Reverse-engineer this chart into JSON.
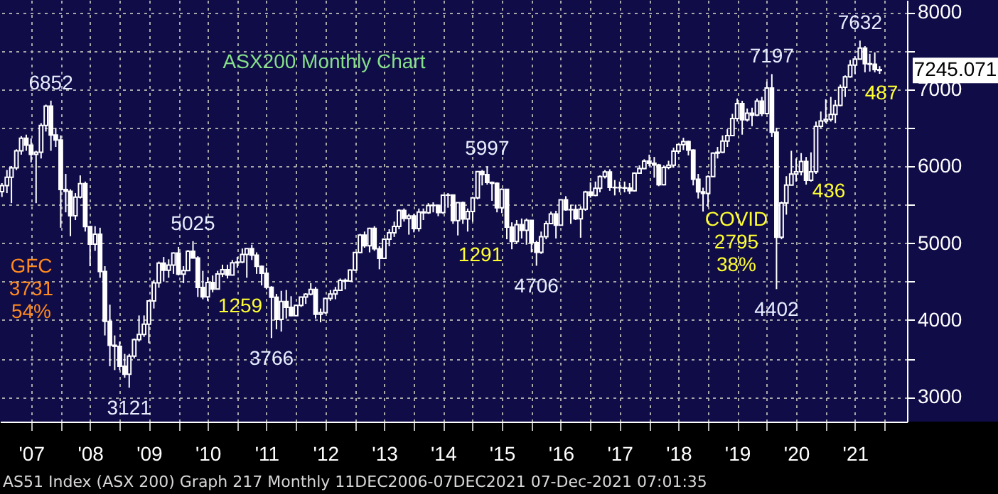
{
  "chart_data": {
    "type": "candlestick",
    "title": "ASX200 Monthly Chart",
    "color": "#ffffff",
    "grid": true,
    "xlim": [
      "2006-12-20",
      "2022-05-20"
    ],
    "xticks": [
      {
        "value": "2007-07",
        "label": "'07"
      },
      {
        "value": "2008-07",
        "label": "'08"
      },
      {
        "value": "2009-07",
        "label": "'09"
      },
      {
        "value": "2010-07",
        "label": "'10"
      },
      {
        "value": "2011-07",
        "label": "'11"
      },
      {
        "value": "2012-07",
        "label": "'12"
      },
      {
        "value": "2013-07",
        "label": "'13"
      },
      {
        "value": "2014-07",
        "label": "'14"
      },
      {
        "value": "2015-07",
        "label": "'15"
      },
      {
        "value": "2016-07",
        "label": "'16"
      },
      {
        "value": "2017-07",
        "label": "'17"
      },
      {
        "value": "2018-07",
        "label": "'18"
      },
      {
        "value": "2019-07",
        "label": "'19"
      },
      {
        "value": "2020-07",
        "label": "'20"
      },
      {
        "value": "2021-07",
        "label": "'21"
      },
      {
        "value": "2008-01",
        "label": null
      },
      {
        "value": "2009-01",
        "label": null
      },
      {
        "value": "2010-01",
        "label": null
      },
      {
        "value": "2011-01",
        "label": null
      },
      {
        "value": "2012-01",
        "label": null
      },
      {
        "value": "2013-01",
        "label": null
      },
      {
        "value": "2014-01",
        "label": null
      },
      {
        "value": "2015-01",
        "label": null
      },
      {
        "value": "2016-01",
        "label": null
      },
      {
        "value": "2017-01",
        "label": null
      },
      {
        "value": "2018-01",
        "label": null
      },
      {
        "value": "2019-01",
        "label": null
      },
      {
        "value": "2020-01",
        "label": null
      },
      {
        "value": "2021-01",
        "label": null
      },
      {
        "value": "2022-01",
        "label": null
      }
    ],
    "ylim": [
      2680,
      8160
    ],
    "yticks": [
      3000,
      4000,
      5000,
      6000,
      7000,
      8000,
      {
        "value": 3500,
        "label": null
      },
      {
        "value": 4500,
        "label": null
      },
      {
        "value": 5500,
        "label": null
      },
      {
        "value": 6500,
        "label": null
      },
      {
        "value": 7500,
        "label": null
      }
    ],
    "annotations": [
      {
        "text": "6852",
        "x": "2007-11",
        "y": 6852
      },
      {
        "text": "3121",
        "x": "2009-03",
        "y": 3121
      },
      {
        "text": "5025",
        "x": "2010-04",
        "y": 5025
      },
      {
        "text": "3766",
        "x": "2011-08",
        "y": 3766
      },
      {
        "text": "5997",
        "x": "2015-04",
        "y": 5997
      },
      {
        "text": "4706",
        "x": "2016-02",
        "y": 4706
      },
      {
        "text": "7197",
        "x": "2020-02",
        "y": 7197
      },
      {
        "text": "4402",
        "x": "2020-03",
        "y": 4402
      },
      {
        "text": "7632",
        "x": "2021-08",
        "y": 7632
      },
      {
        "text": "7245.071",
        "x": "2021-12",
        "y": 7245.071
      },
      "GFC\n3731\n54%",
      "1259",
      "1291",
      "COVID\n2795\n38%",
      "436",
      "487",
      "AS51 Index (ASX 200) Graph 217  Monthly 11DEC2006-07DEC2021 07-Dec-2021 07:01:35"
    ],
    "x": [
      "2007-01",
      "2007-02",
      "2007-03",
      "2007-04",
      "2007-05",
      "2007-06",
      "2007-07",
      "2007-08",
      "2007-09",
      "2007-10",
      "2007-11",
      "2007-12",
      "2008-01",
      "2008-02",
      "2008-03",
      "2008-04",
      "2008-05",
      "2008-06",
      "2008-07",
      "2008-08",
      "2008-09",
      "2008-10",
      "2008-11",
      "2008-12",
      "2009-01",
      "2009-02",
      "2009-03",
      "2009-04",
      "2009-05",
      "2009-06",
      "2009-07",
      "2009-08",
      "2009-09",
      "2009-10",
      "2009-11",
      "2009-12",
      "2010-01",
      "2010-02",
      "2010-03",
      "2010-04",
      "2010-05",
      "2010-06",
      "2010-07",
      "2010-08",
      "2010-09",
      "2010-10",
      "2010-11",
      "2010-12",
      "2011-01",
      "2011-02",
      "2011-03",
      "2011-04",
      "2011-05",
      "2011-06",
      "2011-07",
      "2011-08",
      "2011-09",
      "2011-10",
      "2011-11",
      "2011-12",
      "2012-01",
      "2012-02",
      "2012-03",
      "2012-04",
      "2012-05",
      "2012-06",
      "2012-07",
      "2012-08",
      "2012-09",
      "2012-10",
      "2012-11",
      "2012-12",
      "2013-01",
      "2013-02",
      "2013-03",
      "2013-04",
      "2013-05",
      "2013-06",
      "2013-07",
      "2013-08",
      "2013-09",
      "2013-10",
      "2013-11",
      "2013-12",
      "2014-01",
      "2014-02",
      "2014-03",
      "2014-04",
      "2014-05",
      "2014-06",
      "2014-07",
      "2014-08",
      "2014-09",
      "2014-10",
      "2014-11",
      "2014-12",
      "2015-01",
      "2015-02",
      "2015-03",
      "2015-04",
      "2015-05",
      "2015-06",
      "2015-07",
      "2015-08",
      "2015-09",
      "2015-10",
      "2015-11",
      "2015-12",
      "2016-01",
      "2016-02",
      "2016-03",
      "2016-04",
      "2016-05",
      "2016-06",
      "2016-07",
      "2016-08",
      "2016-09",
      "2016-10",
      "2016-11",
      "2016-12",
      "2017-01",
      "2017-02",
      "2017-03",
      "2017-04",
      "2017-05",
      "2017-06",
      "2017-07",
      "2017-08",
      "2017-09",
      "2017-10",
      "2017-11",
      "2017-12",
      "2018-01",
      "2018-02",
      "2018-03",
      "2018-04",
      "2018-05",
      "2018-06",
      "2018-07",
      "2018-08",
      "2018-09",
      "2018-10",
      "2018-11",
      "2018-12",
      "2019-01",
      "2019-02",
      "2019-03",
      "2019-04",
      "2019-05",
      "2019-06",
      "2019-07",
      "2019-08",
      "2019-09",
      "2019-10",
      "2019-11",
      "2019-12",
      "2020-01",
      "2020-02",
      "2020-03",
      "2020-04",
      "2020-05",
      "2020-06",
      "2020-07",
      "2020-08",
      "2020-09",
      "2020-10",
      "2020-11",
      "2020-12",
      "2021-01",
      "2021-02",
      "2021-03",
      "2021-04",
      "2021-05",
      "2021-06",
      "2021-07",
      "2021-08",
      "2021-09",
      "2021-10",
      "2021-11",
      "2021-12"
    ],
    "ohlc": [
      [
        5669,
        5780,
        5600,
        5748
      ],
      [
        5748,
        5950,
        5650,
        5856
      ],
      [
        5856,
        6000,
        5520,
        5978
      ],
      [
        5978,
        6220,
        5950,
        6200
      ],
      [
        6200,
        6390,
        6150,
        6363
      ],
      [
        6363,
        6410,
        6200,
        6274
      ],
      [
        6274,
        6360,
        6050,
        6153
      ],
      [
        6153,
        6200,
        5520,
        6180
      ],
      [
        6180,
        6560,
        6100,
        6529
      ],
      [
        6529,
        6800,
        6450,
        6780
      ],
      [
        6780,
        6852,
        6200,
        6405
      ],
      [
        6405,
        6500,
        6250,
        6340
      ],
      [
        6340,
        6400,
        5200,
        5697
      ],
      [
        5697,
        5900,
        5400,
        5673
      ],
      [
        5673,
        5700,
        5090,
        5355
      ],
      [
        5355,
        5650,
        5300,
        5598
      ],
      [
        5598,
        5880,
        5580,
        5773
      ],
      [
        5773,
        5800,
        5150,
        5215
      ],
      [
        5215,
        5220,
        4700,
        4986
      ],
      [
        4986,
        5220,
        4900,
        5116
      ],
      [
        5116,
        5200,
        4550,
        4631
      ],
      [
        4631,
        4700,
        3800,
        3983
      ],
      [
        3983,
        4200,
        3400,
        3672
      ],
      [
        3672,
        3800,
        3350,
        3659
      ],
      [
        3659,
        3720,
        3350,
        3400
      ],
      [
        3400,
        3560,
        3250,
        3296
      ],
      [
        3296,
        3560,
        3121,
        3532
      ],
      [
        3532,
        3760,
        3500,
        3745
      ],
      [
        3745,
        4060,
        3720,
        3813
      ],
      [
        3813,
        4060,
        3780,
        3947
      ],
      [
        3947,
        4260,
        3700,
        4249
      ],
      [
        4249,
        4520,
        4150,
        4484
      ],
      [
        4484,
        4760,
        4420,
        4739
      ],
      [
        4739,
        4820,
        4500,
        4647
      ],
      [
        4647,
        4790,
        4550,
        4715
      ],
      [
        4715,
        4880,
        4600,
        4870
      ],
      [
        4870,
        4950,
        4580,
        4596
      ],
      [
        4596,
        4700,
        4480,
        4643
      ],
      [
        4643,
        4910,
        4640,
        4893
      ],
      [
        4893,
        5025,
        4800,
        4807
      ],
      [
        4807,
        4830,
        4300,
        4424
      ],
      [
        4424,
        4640,
        4270,
        4302
      ],
      [
        4302,
        4560,
        4250,
        4488
      ],
      [
        4488,
        4580,
        4360,
        4404
      ],
      [
        4404,
        4640,
        4400,
        4599
      ],
      [
        4599,
        4720,
        4560,
        4655
      ],
      [
        4655,
        4720,
        4540,
        4585
      ],
      [
        4585,
        4780,
        4580,
        4745
      ],
      [
        4745,
        4820,
        4680,
        4753
      ],
      [
        4753,
        4930,
        4740,
        4853
      ],
      [
        4853,
        4930,
        4550,
        4929
      ],
      [
        4929,
        4980,
        4780,
        4843
      ],
      [
        4843,
        4880,
        4600,
        4697
      ],
      [
        4697,
        4710,
        4450,
        4608
      ],
      [
        4608,
        4680,
        4400,
        4425
      ],
      [
        4425,
        4440,
        3766,
        4296
      ],
      [
        4296,
        4340,
        3880,
        4008
      ],
      [
        4008,
        4380,
        3850,
        4242
      ],
      [
        4242,
        4390,
        4020,
        4166
      ],
      [
        4166,
        4310,
        4050,
        4057
      ],
      [
        4057,
        4200,
        4050,
        4190
      ],
      [
        4190,
        4300,
        4170,
        4299
      ],
      [
        4299,
        4350,
        4210,
        4335
      ],
      [
        4335,
        4480,
        4320,
        4398
      ],
      [
        4398,
        4430,
        4020,
        4076
      ],
      [
        4076,
        4150,
        3970,
        4095
      ],
      [
        4095,
        4290,
        4080,
        4280
      ],
      [
        4280,
        4390,
        4250,
        4339
      ],
      [
        4339,
        4430,
        4270,
        4387
      ],
      [
        4387,
        4540,
        4380,
        4517
      ],
      [
        4517,
        4540,
        4400,
        4507
      ],
      [
        4507,
        4660,
        4500,
        4649
      ],
      [
        4649,
        4880,
        4640,
        4879
      ],
      [
        4879,
        5120,
        4870,
        5104
      ],
      [
        5104,
        5150,
        4940,
        4966
      ],
      [
        4966,
        5200,
        4880,
        5191
      ],
      [
        5191,
        5220,
        4900,
        4926
      ],
      [
        4926,
        4960,
        4660,
        4803
      ],
      [
        4803,
        5060,
        4800,
        5052
      ],
      [
        5052,
        5180,
        4960,
        5135
      ],
      [
        5135,
        5280,
        5080,
        5218
      ],
      [
        5218,
        5440,
        5180,
        5425
      ],
      [
        5425,
        5450,
        5280,
        5320
      ],
      [
        5320,
        5380,
        5110,
        5352
      ],
      [
        5352,
        5380,
        5140,
        5190
      ],
      [
        5190,
        5450,
        5150,
        5405
      ],
      [
        5405,
        5450,
        5300,
        5394
      ],
      [
        5394,
        5520,
        5380,
        5489
      ],
      [
        5489,
        5530,
        5400,
        5492
      ],
      [
        5492,
        5500,
        5350,
        5396
      ],
      [
        5396,
        5630,
        5380,
        5623
      ],
      [
        5623,
        5650,
        5460,
        5625
      ],
      [
        5625,
        5630,
        5250,
        5292
      ],
      [
        5292,
        5530,
        5100,
        5526
      ],
      [
        5526,
        5540,
        5250,
        5313
      ],
      [
        5313,
        5450,
        5150,
        5411
      ],
      [
        5411,
        5600,
        5280,
        5588
      ],
      [
        5588,
        5930,
        5570,
        5929
      ],
      [
        5929,
        5950,
        5750,
        5891
      ],
      [
        5891,
        5997,
        5760,
        5790
      ],
      [
        5790,
        5800,
        5550,
        5777
      ],
      [
        5777,
        5790,
        5400,
        5459
      ],
      [
        5459,
        5710,
        5390,
        5699
      ],
      [
        5699,
        5700,
        5050,
        5207
      ],
      [
        5207,
        5270,
        4920,
        5022
      ],
      [
        5022,
        5300,
        4990,
        5239
      ],
      [
        5239,
        5320,
        5060,
        5167
      ],
      [
        5167,
        5320,
        4980,
        5296
      ],
      [
        5296,
        5300,
        4880,
        5005
      ],
      [
        5005,
        5030,
        4706,
        4881
      ],
      [
        4881,
        5150,
        4860,
        5083
      ],
      [
        5083,
        5290,
        5050,
        5253
      ],
      [
        5253,
        5410,
        5250,
        5378
      ],
      [
        5378,
        5420,
        5060,
        5233
      ],
      [
        5233,
        5570,
        5230,
        5562
      ],
      [
        5562,
        5610,
        5420,
        5433
      ],
      [
        5433,
        5500,
        5250,
        5436
      ],
      [
        5436,
        5500,
        5300,
        5317
      ],
      [
        5317,
        5480,
        5070,
        5440
      ],
      [
        5440,
        5680,
        5420,
        5665
      ],
      [
        5665,
        5790,
        5590,
        5621
      ],
      [
        5621,
        5800,
        5610,
        5712
      ],
      [
        5712,
        5880,
        5660,
        5865
      ],
      [
        5865,
        5950,
        5840,
        5924
      ],
      [
        5924,
        5960,
        5680,
        5724
      ],
      [
        5724,
        5820,
        5620,
        5721
      ],
      [
        5721,
        5800,
        5660,
        5720
      ],
      [
        5720,
        5800,
        5660,
        5715
      ],
      [
        5715,
        5780,
        5640,
        5681
      ],
      [
        5681,
        5920,
        5670,
        5909
      ],
      [
        5909,
        6010,
        5900,
        5970
      ],
      [
        5970,
        6090,
        5960,
        6065
      ],
      [
        6065,
        6150,
        6000,
        6037
      ],
      [
        6037,
        6120,
        5850,
        6016
      ],
      [
        6016,
        6030,
        5740,
        5759
      ],
      [
        5759,
        6010,
        5750,
        5983
      ],
      [
        5983,
        6070,
        5960,
        6012
      ],
      [
        6012,
        6240,
        5980,
        6195
      ],
      [
        6195,
        6290,
        6160,
        6280
      ],
      [
        6280,
        6370,
        6210,
        6319
      ],
      [
        6319,
        6330,
        6140,
        6208
      ],
      [
        6208,
        6220,
        5750,
        5830
      ],
      [
        5830,
        5900,
        5580,
        5667
      ],
      [
        5667,
        5720,
        5410,
        5646
      ],
      [
        5646,
        5880,
        5470,
        5865
      ],
      [
        5865,
        6180,
        5860,
        6169
      ],
      [
        6169,
        6250,
        6100,
        6181
      ],
      [
        6181,
        6400,
        6170,
        6326
      ],
      [
        6326,
        6480,
        6250,
        6397
      ],
      [
        6397,
        6680,
        6390,
        6619
      ],
      [
        6619,
        6880,
        6580,
        6813
      ],
      [
        6813,
        6850,
        6410,
        6604
      ],
      [
        6604,
        6750,
        6580,
        6688
      ],
      [
        6688,
        6760,
        6520,
        6663
      ],
      [
        6663,
        6880,
        6650,
        6846
      ],
      [
        6846,
        6900,
        6650,
        6684
      ],
      [
        6684,
        7100,
        6680,
        7017
      ],
      [
        7017,
        7197,
        6380,
        6441
      ],
      [
        6441,
        6500,
        4402,
        5077
      ],
      [
        5077,
        5540,
        5050,
        5522
      ],
      [
        5522,
        5870,
        5370,
        5755
      ],
      [
        5755,
        6200,
        5750,
        5898
      ],
      [
        5898,
        6100,
        5800,
        5928
      ],
      [
        5928,
        6170,
        5880,
        6061
      ],
      [
        6061,
        6120,
        5760,
        5816
      ],
      [
        5816,
        6180,
        5800,
        5928
      ],
      [
        5928,
        6580,
        5900,
        6517
      ],
      [
        6517,
        6710,
        6500,
        6587
      ],
      [
        6587,
        6870,
        6560,
        6607
      ],
      [
        6607,
        6900,
        6580,
        6673
      ],
      [
        6673,
        6860,
        6560,
        6791
      ],
      [
        6791,
        7060,
        6780,
        7025
      ],
      [
        7025,
        7180,
        6900,
        7162
      ],
      [
        7162,
        7380,
        7150,
        7313
      ],
      [
        7313,
        7430,
        7200,
        7393
      ],
      [
        7393,
        7632,
        7390,
        7535
      ],
      [
        7535,
        7560,
        7220,
        7332
      ],
      [
        7332,
        7460,
        7230,
        7324
      ],
      [
        7324,
        7480,
        7220,
        7256
      ],
      [
        7256,
        7300,
        7200,
        7245
      ]
    ]
  }
}
